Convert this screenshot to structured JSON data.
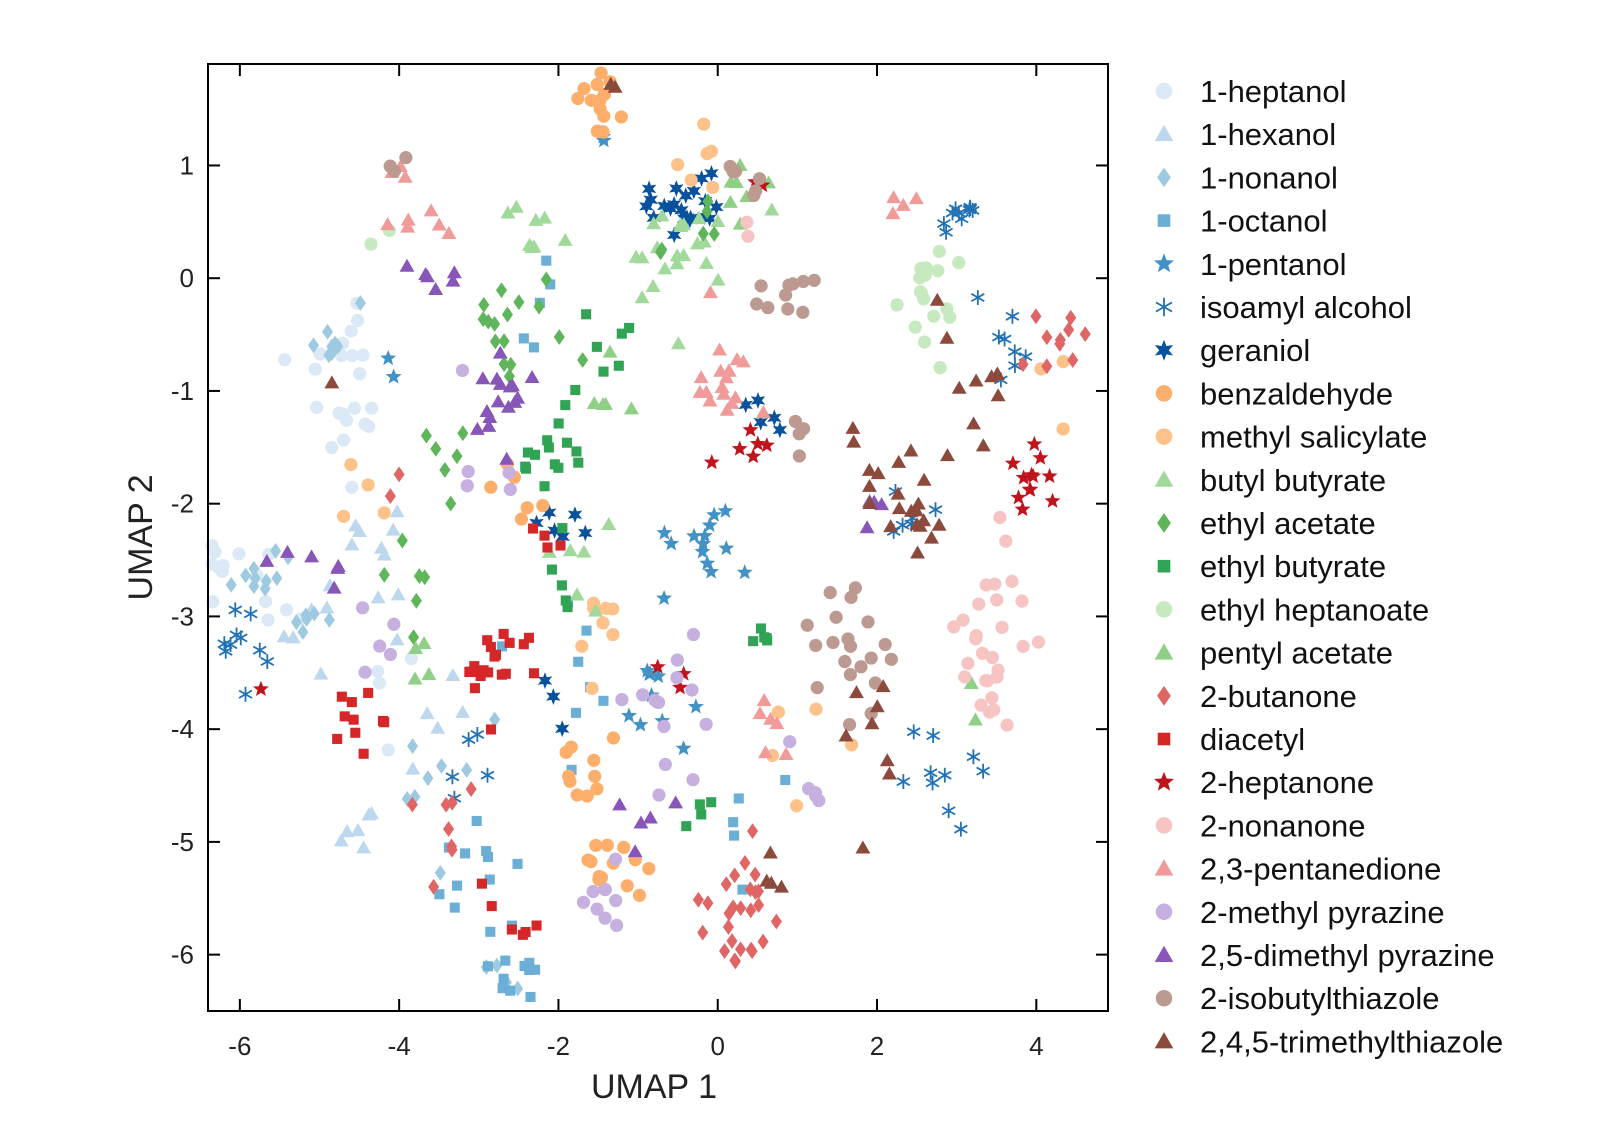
{
  "chart_data": {
    "type": "scatter",
    "title": "",
    "xlabel": "UMAP 1",
    "ylabel": "UMAP 2",
    "xlim": [
      -6.4,
      4.9
    ],
    "ylim": [
      -6.5,
      1.9
    ],
    "xticks": [
      -6,
      -4,
      -2,
      0,
      2,
      4
    ],
    "yticks": [
      1,
      0,
      -1,
      -2,
      -3,
      -4,
      -5,
      -6
    ],
    "grid": false,
    "legend_position": "right-outside",
    "series": [
      {
        "name": "1-heptanol",
        "color": "#dbe9f6",
        "marker": "circle",
        "clusters": [
          [
            -4.8,
            -0.7,
            0.5,
            0.4,
            12
          ],
          [
            -4.6,
            -1.3,
            0.3,
            0.3,
            10
          ],
          [
            -6.2,
            -2.5,
            0.3,
            0.2,
            8
          ],
          [
            -5.6,
            -3.0,
            0.4,
            0.5,
            6
          ],
          [
            -4.0,
            -3.7,
            0.3,
            0.3,
            4
          ]
        ]
      },
      {
        "name": "1-hexanol",
        "color": "#bdd7ee",
        "marker": "triangle",
        "clusters": [
          [
            -4.2,
            -2.5,
            0.4,
            0.5,
            10
          ],
          [
            -5.2,
            -3.1,
            0.4,
            0.4,
            6
          ],
          [
            -4.6,
            -4.9,
            0.3,
            0.3,
            6
          ],
          [
            -3.4,
            -3.9,
            0.4,
            0.3,
            5
          ]
        ]
      },
      {
        "name": "1-nonanol",
        "color": "#9ecae1",
        "marker": "diamond",
        "clusters": [
          [
            -5.9,
            -2.7,
            0.3,
            0.3,
            10
          ],
          [
            -4.9,
            -0.5,
            0.3,
            0.3,
            8
          ],
          [
            -3.5,
            -4.5,
            0.5,
            0.6,
            8
          ],
          [
            -2.8,
            -6.2,
            0.3,
            0.2,
            5
          ],
          [
            -5.1,
            -2.9,
            0.3,
            0.4,
            6
          ]
        ]
      },
      {
        "name": "1-octanol",
        "color": "#6baed6",
        "marker": "square",
        "clusters": [
          [
            -3.1,
            -5.3,
            0.4,
            0.4,
            12
          ],
          [
            -2.5,
            -6.2,
            0.3,
            0.2,
            10
          ],
          [
            -1.9,
            -3.5,
            0.5,
            0.5,
            8
          ],
          [
            -2.3,
            -0.3,
            0.4,
            0.4,
            5
          ],
          [
            0.3,
            -4.8,
            0.4,
            0.5,
            5
          ]
        ]
      },
      {
        "name": "1-pentanol",
        "color": "#4292c6",
        "marker": "star",
        "clusters": [
          [
            -0.2,
            -2.3,
            0.5,
            0.4,
            14
          ],
          [
            -0.8,
            -3.7,
            0.5,
            0.4,
            10
          ],
          [
            -1.5,
            1.3,
            0.2,
            0.2,
            2
          ],
          [
            -4.1,
            -0.7,
            0.2,
            0.2,
            2
          ]
        ]
      },
      {
        "name": "isoamyl alcohol",
        "color": "#2171b5",
        "marker": "asterisk",
        "clusters": [
          [
            3.0,
            0.5,
            0.3,
            0.2,
            10
          ],
          [
            3.6,
            -0.5,
            0.3,
            0.3,
            8
          ],
          [
            2.7,
            -4.5,
            0.5,
            0.6,
            10
          ],
          [
            -6.0,
            -3.2,
            0.3,
            0.3,
            10
          ],
          [
            -3.1,
            -4.3,
            0.3,
            0.3,
            5
          ],
          [
            2.5,
            -2.1,
            0.3,
            0.2,
            6
          ]
        ]
      },
      {
        "name": "geraniol",
        "color": "#08519c",
        "marker": "star6",
        "clusters": [
          [
            -0.4,
            0.7,
            0.5,
            0.3,
            22
          ],
          [
            0.5,
            -1.2,
            0.3,
            0.3,
            5
          ],
          [
            -1.9,
            -2.2,
            0.3,
            0.3,
            6
          ],
          [
            -2.2,
            -3.8,
            0.2,
            0.2,
            3
          ]
        ]
      },
      {
        "name": "benzaldehyde",
        "color": "#fdae6b",
        "marker": "circle",
        "clusters": [
          [
            -1.5,
            1.6,
            0.2,
            0.2,
            14
          ],
          [
            -1.3,
            -5.2,
            0.4,
            0.3,
            14
          ],
          [
            -1.6,
            -4.4,
            0.3,
            0.4,
            10
          ],
          [
            -2.5,
            -2.0,
            0.4,
            0.4,
            6
          ]
        ]
      },
      {
        "name": "methyl salicylate",
        "color": "#fdc28a",
        "marker": "circle",
        "clusters": [
          [
            -1.6,
            -3.0,
            0.5,
            0.5,
            8
          ],
          [
            -0.3,
            1.1,
            0.4,
            0.3,
            6
          ],
          [
            0.9,
            -4.0,
            0.6,
            0.6,
            5
          ],
          [
            -4.5,
            -1.6,
            0.4,
            0.6,
            4
          ],
          [
            4.4,
            -1.0,
            0.4,
            0.8,
            3
          ]
        ]
      },
      {
        "name": "butyl butyrate",
        "color": "#a1d99b",
        "marker": "triangle",
        "clusters": [
          [
            -0.5,
            0.2,
            0.6,
            0.5,
            22
          ],
          [
            -2.3,
            0.4,
            0.3,
            0.3,
            8
          ],
          [
            -1.7,
            -2.5,
            0.4,
            0.4,
            6
          ]
        ]
      },
      {
        "name": "ethyl acetate",
        "color": "#5fb55a",
        "marker": "diamond",
        "clusters": [
          [
            -2.6,
            -0.4,
            0.5,
            0.4,
            16
          ],
          [
            -3.3,
            -1.7,
            0.3,
            0.3,
            6
          ],
          [
            -3.8,
            -2.7,
            0.4,
            0.4,
            6
          ],
          [
            -0.3,
            0.4,
            0.5,
            0.2,
            6
          ]
        ]
      },
      {
        "name": "ethyl butyrate",
        "color": "#31a354",
        "marker": "square",
        "clusters": [
          [
            -2.0,
            -1.6,
            0.4,
            0.5,
            16
          ],
          [
            -1.4,
            -0.5,
            0.3,
            0.3,
            6
          ],
          [
            0.5,
            -3.2,
            0.3,
            0.2,
            5
          ],
          [
            -0.2,
            -4.9,
            0.2,
            0.2,
            4
          ],
          [
            -1.8,
            -2.7,
            0.3,
            0.3,
            4
          ]
        ]
      },
      {
        "name": "ethyl heptanoate",
        "color": "#c7e9c0",
        "marker": "circle",
        "clusters": [
          [
            2.7,
            -0.4,
            0.4,
            0.5,
            18
          ],
          [
            -4.2,
            0.4,
            0.2,
            0.1,
            2
          ]
        ]
      },
      {
        "name": "pentyl acetate",
        "color": "#8fcf86",
        "marker": "triangle",
        "clusters": [
          [
            0.3,
            0.8,
            0.3,
            0.2,
            8
          ],
          [
            -1.5,
            -1.0,
            0.3,
            0.3,
            5
          ],
          [
            -3.6,
            -3.4,
            0.4,
            0.3,
            4
          ],
          [
            3.2,
            -3.6,
            0.2,
            0.2,
            2
          ]
        ]
      },
      {
        "name": "2-butanone",
        "color": "#e06666",
        "marker": "diamond",
        "clusters": [
          [
            0.3,
            -5.5,
            0.4,
            0.4,
            20
          ],
          [
            0.2,
            -6.0,
            0.2,
            0.2,
            6
          ],
          [
            4.4,
            -0.4,
            0.4,
            0.4,
            10
          ],
          [
            -3.5,
            -5.0,
            0.4,
            0.4,
            8
          ],
          [
            -4.0,
            -2.0,
            0.2,
            0.2,
            2
          ]
        ]
      },
      {
        "name": "diacetyl",
        "color": "#d62728",
        "marker": "square",
        "clusters": [
          [
            -2.8,
            -3.4,
            0.5,
            0.3,
            20
          ],
          [
            -4.6,
            -3.9,
            0.4,
            0.2,
            10
          ],
          [
            -2.6,
            -5.7,
            0.4,
            0.3,
            6
          ],
          [
            -2.1,
            -2.3,
            0.3,
            0.2,
            4
          ]
        ]
      },
      {
        "name": "2-heptanone",
        "color": "#c0141c",
        "marker": "star",
        "clusters": [
          [
            3.9,
            -1.7,
            0.3,
            0.3,
            12
          ],
          [
            0.4,
            -1.6,
            0.3,
            0.2,
            6
          ],
          [
            -0.6,
            -3.5,
            0.3,
            0.2,
            3
          ],
          [
            -5.8,
            -3.6,
            0.1,
            0.1,
            1
          ],
          [
            0.6,
            0.8,
            0.2,
            0.1,
            2
          ]
        ]
      },
      {
        "name": "2-nonanone",
        "color": "#f7c4c4",
        "marker": "circle",
        "clusters": [
          [
            3.4,
            -3.1,
            0.4,
            0.5,
            22
          ],
          [
            3.4,
            -3.8,
            0.2,
            0.2,
            6
          ],
          [
            0.4,
            0.3,
            0.2,
            0.2,
            2
          ]
        ]
      },
      {
        "name": "2,3-pentanedione",
        "color": "#f09a9a",
        "marker": "triangle",
        "clusters": [
          [
            0.0,
            -1.0,
            0.4,
            0.5,
            18
          ],
          [
            -3.7,
            0.5,
            0.3,
            0.2,
            6
          ],
          [
            2.3,
            0.6,
            0.2,
            0.1,
            4
          ],
          [
            0.8,
            -4.1,
            0.3,
            0.3,
            6
          ],
          [
            -4.0,
            0.9,
            0.2,
            0.1,
            3
          ]
        ]
      },
      {
        "name": "2-methyl pyrazine",
        "color": "#c5b0e0",
        "marker": "circle",
        "clusters": [
          [
            -0.6,
            -3.8,
            0.4,
            0.5,
            14
          ],
          [
            -1.2,
            -5.6,
            0.3,
            0.3,
            8
          ],
          [
            1.2,
            -4.6,
            0.3,
            0.3,
            5
          ],
          [
            -4.3,
            -3.2,
            0.3,
            0.3,
            5
          ],
          [
            -3.0,
            -1.5,
            0.5,
            0.4,
            5
          ]
        ]
      },
      {
        "name": "2,5-dimethyl pyrazine",
        "color": "#8856b8",
        "marker": "triangle",
        "clusters": [
          [
            -2.7,
            -1.1,
            0.4,
            0.4,
            16
          ],
          [
            -3.4,
            -0.1,
            0.4,
            0.3,
            6
          ],
          [
            -5.1,
            -2.6,
            0.5,
            0.3,
            6
          ],
          [
            1.9,
            -2.1,
            0.2,
            0.3,
            4
          ],
          [
            -1.0,
            -4.8,
            0.5,
            0.5,
            5
          ]
        ]
      },
      {
        "name": "2-isobutylthiazole",
        "color": "#bc9a92",
        "marker": "circle",
        "clusters": [
          [
            1.7,
            -3.3,
            0.4,
            0.6,
            20
          ],
          [
            0.9,
            -0.2,
            0.3,
            0.3,
            10
          ],
          [
            0.3,
            0.8,
            0.3,
            0.2,
            6
          ],
          [
            1.1,
            -1.5,
            0.3,
            0.3,
            4
          ],
          [
            -4.0,
            0.95,
            0.1,
            0.1,
            3
          ]
        ]
      },
      {
        "name": "2,4,5-trimethylthiazole",
        "color": "#8c4a3c",
        "marker": "triangle",
        "clusters": [
          [
            2.3,
            -1.9,
            0.5,
            0.5,
            22
          ],
          [
            3.2,
            -1.0,
            0.4,
            0.4,
            10
          ],
          [
            1.9,
            -4.2,
            0.3,
            0.5,
            8
          ],
          [
            0.7,
            -5.4,
            0.3,
            0.3,
            4
          ],
          [
            -1.3,
            1.7,
            0.1,
            0.1,
            2
          ],
          [
            -4.9,
            -0.9,
            0.1,
            0.1,
            1
          ]
        ]
      }
    ]
  }
}
